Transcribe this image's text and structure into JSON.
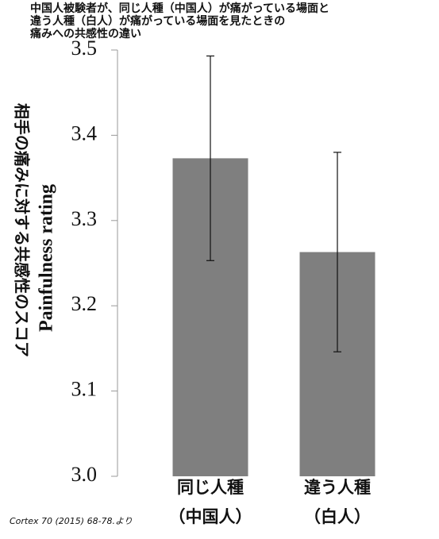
{
  "chart_data": {
    "type": "bar",
    "title": [
      "中国人被験者が、同じ人種（中国人）が痛がっている場面と",
      "違う人種（白人）が痛がっている場面を見たときの",
      "痛みへの共感性の違い"
    ],
    "ylabel": "Painfulness rating",
    "ylabel_ja": "相手の痛みに対する共感性のスコア",
    "categories": [
      "同じ人種",
      "違う人種"
    ],
    "category_notes": [
      "（中国人）",
      "（白人）"
    ],
    "values": [
      3.373,
      3.263
    ],
    "errors": [
      0.12,
      0.117
    ],
    "color": "#7f7f7f",
    "ylim": [
      3.0,
      3.5
    ],
    "yticks": [
      {
        "value": 3.0,
        "label": "3.0"
      },
      3.1,
      3.2,
      3.3,
      3.4,
      3.5
    ],
    "source": "Cortex 70 (2015) 68-78.より"
  }
}
